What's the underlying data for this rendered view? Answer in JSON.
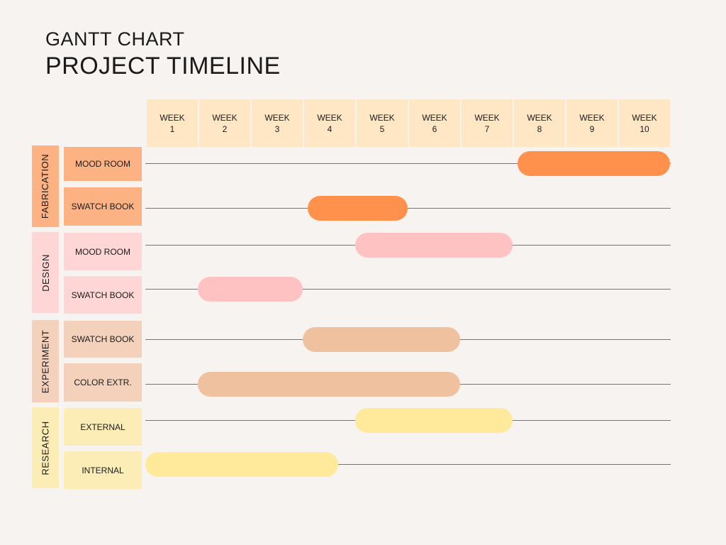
{
  "header": {
    "subtitle": "GANTT CHART",
    "title": "PROJECT TIMELINE"
  },
  "chart_data": {
    "type": "gantt",
    "title": "PROJECT TIMELINE",
    "weeks": [
      "WEEK\n1",
      "WEEK\n2",
      "WEEK\n3",
      "WEEK\n4",
      "WEEK\n5",
      "WEEK\n6",
      "WEEK\n7",
      "WEEK\n8",
      "WEEK\n9",
      "WEEK\n10"
    ],
    "groups": [
      {
        "name": "FABRICATION",
        "label_color": "#fdb283",
        "bar_color": "#ff914d",
        "tasks": [
          {
            "name": "MOOD ROOM",
            "start": 8.1,
            "end": 11
          },
          {
            "name": "SWATCH BOOK",
            "start": 4.1,
            "end": 6
          }
        ]
      },
      {
        "name": "DESIGN",
        "label_color": "#ffd6d6",
        "bar_color": "#ffc2c2",
        "tasks": [
          {
            "name": "MOOD ROOM",
            "start": 5,
            "end": 8
          },
          {
            "name": "SWATCH BOOK",
            "start": 2,
            "end": 4
          }
        ]
      },
      {
        "name": "EXPERIMENT",
        "label_color": "#f3d1ba",
        "bar_color": "#f0c19f",
        "tasks": [
          {
            "name": "SWATCH BOOK",
            "start": 4,
            "end": 7
          },
          {
            "name": "COLOR EXTR.",
            "start": 2,
            "end": 7
          }
        ]
      },
      {
        "name": "RESEARCH",
        "label_color": "#fcedb7",
        "bar_color": "#ffe99a",
        "tasks": [
          {
            "name": "EXTERNAL",
            "start": 5,
            "end": 8
          },
          {
            "name": "INTERNAL",
            "start": 1,
            "end": 4.67
          }
        ]
      }
    ]
  }
}
